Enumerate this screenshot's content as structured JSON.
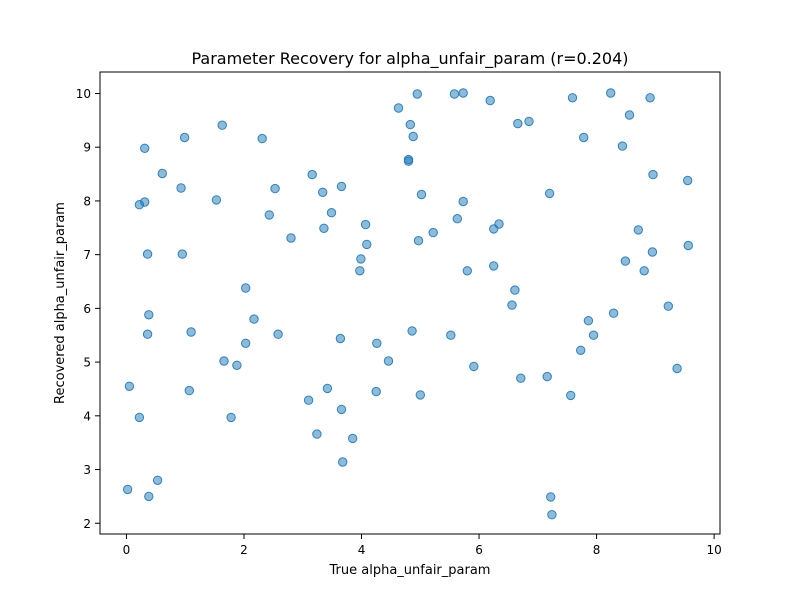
{
  "chart_data": {
    "type": "scatter",
    "title": "Parameter Recovery for alpha_unfair_param (r=0.204)",
    "xlabel": "True alpha_unfair_param",
    "ylabel": "Recovered alpha_unfair_param",
    "xlim": [
      -0.45,
      10.1
    ],
    "ylim": [
      1.8,
      10.4
    ],
    "xticks": [
      0,
      2,
      4,
      6,
      8,
      10
    ],
    "yticks": [
      2,
      3,
      4,
      5,
      6,
      7,
      8,
      9,
      10
    ],
    "grid": false,
    "legend": "none",
    "marker_color": "#1f77b4",
    "marker_alpha": 0.5,
    "points": [
      [
        0.02,
        2.63
      ],
      [
        0.05,
        4.55
      ],
      [
        0.22,
        3.97
      ],
      [
        0.22,
        7.93
      ],
      [
        0.31,
        7.98
      ],
      [
        0.31,
        8.98
      ],
      [
        0.36,
        7.01
      ],
      [
        0.36,
        5.52
      ],
      [
        0.38,
        5.88
      ],
      [
        0.38,
        2.5
      ],
      [
        0.53,
        2.8
      ],
      [
        0.61,
        8.51
      ],
      [
        0.93,
        8.24
      ],
      [
        0.95,
        7.01
      ],
      [
        0.99,
        9.18
      ],
      [
        1.07,
        4.47
      ],
      [
        1.1,
        5.56
      ],
      [
        1.53,
        8.02
      ],
      [
        1.63,
        9.41
      ],
      [
        1.66,
        5.02
      ],
      [
        1.78,
        3.97
      ],
      [
        1.88,
        4.94
      ],
      [
        2.03,
        6.38
      ],
      [
        2.03,
        5.35
      ],
      [
        2.17,
        5.8
      ],
      [
        2.31,
        9.16
      ],
      [
        2.43,
        7.74
      ],
      [
        2.53,
        8.23
      ],
      [
        2.58,
        5.52
      ],
      [
        2.8,
        7.31
      ],
      [
        3.1,
        4.29
      ],
      [
        3.16,
        8.49
      ],
      [
        3.24,
        3.66
      ],
      [
        3.34,
        8.16
      ],
      [
        3.36,
        7.49
      ],
      [
        3.42,
        4.51
      ],
      [
        3.49,
        7.78
      ],
      [
        3.64,
        5.44
      ],
      [
        3.66,
        8.27
      ],
      [
        3.66,
        4.12
      ],
      [
        3.68,
        3.14
      ],
      [
        3.85,
        3.58
      ],
      [
        3.97,
        6.7
      ],
      [
        3.99,
        6.92
      ],
      [
        4.07,
        7.56
      ],
      [
        4.09,
        7.19
      ],
      [
        4.25,
        4.45
      ],
      [
        4.26,
        5.35
      ],
      [
        4.46,
        5.02
      ],
      [
        4.63,
        9.73
      ],
      [
        4.8,
        8.74
      ],
      [
        4.8,
        8.77
      ],
      [
        4.83,
        9.42
      ],
      [
        4.86,
        5.58
      ],
      [
        4.88,
        9.2
      ],
      [
        4.95,
        9.99
      ],
      [
        4.97,
        7.26
      ],
      [
        5.0,
        4.39
      ],
      [
        5.02,
        8.12
      ],
      [
        5.22,
        7.41
      ],
      [
        5.52,
        5.5
      ],
      [
        5.58,
        9.99
      ],
      [
        5.63,
        7.67
      ],
      [
        5.73,
        10.01
      ],
      [
        5.73,
        7.99
      ],
      [
        5.8,
        6.7
      ],
      [
        5.91,
        4.92
      ],
      [
        6.19,
        9.87
      ],
      [
        6.25,
        7.48
      ],
      [
        6.25,
        6.79
      ],
      [
        6.34,
        7.57
      ],
      [
        6.56,
        6.06
      ],
      [
        6.61,
        6.34
      ],
      [
        6.66,
        9.44
      ],
      [
        6.71,
        4.7
      ],
      [
        6.85,
        9.48
      ],
      [
        7.16,
        4.73
      ],
      [
        7.2,
        8.14
      ],
      [
        7.22,
        2.49
      ],
      [
        7.24,
        2.16
      ],
      [
        7.56,
        4.38
      ],
      [
        7.59,
        9.92
      ],
      [
        7.73,
        5.22
      ],
      [
        7.78,
        9.18
      ],
      [
        7.86,
        5.77
      ],
      [
        7.95,
        5.5
      ],
      [
        8.24,
        10.01
      ],
      [
        8.29,
        5.91
      ],
      [
        8.44,
        9.02
      ],
      [
        8.49,
        6.88
      ],
      [
        8.56,
        9.6
      ],
      [
        8.71,
        7.46
      ],
      [
        8.81,
        6.7
      ],
      [
        8.91,
        9.92
      ],
      [
        8.95,
        7.05
      ],
      [
        8.96,
        8.49
      ],
      [
        9.22,
        6.04
      ],
      [
        9.37,
        4.88
      ],
      [
        9.55,
        8.38
      ],
      [
        9.56,
        7.17
      ]
    ]
  }
}
